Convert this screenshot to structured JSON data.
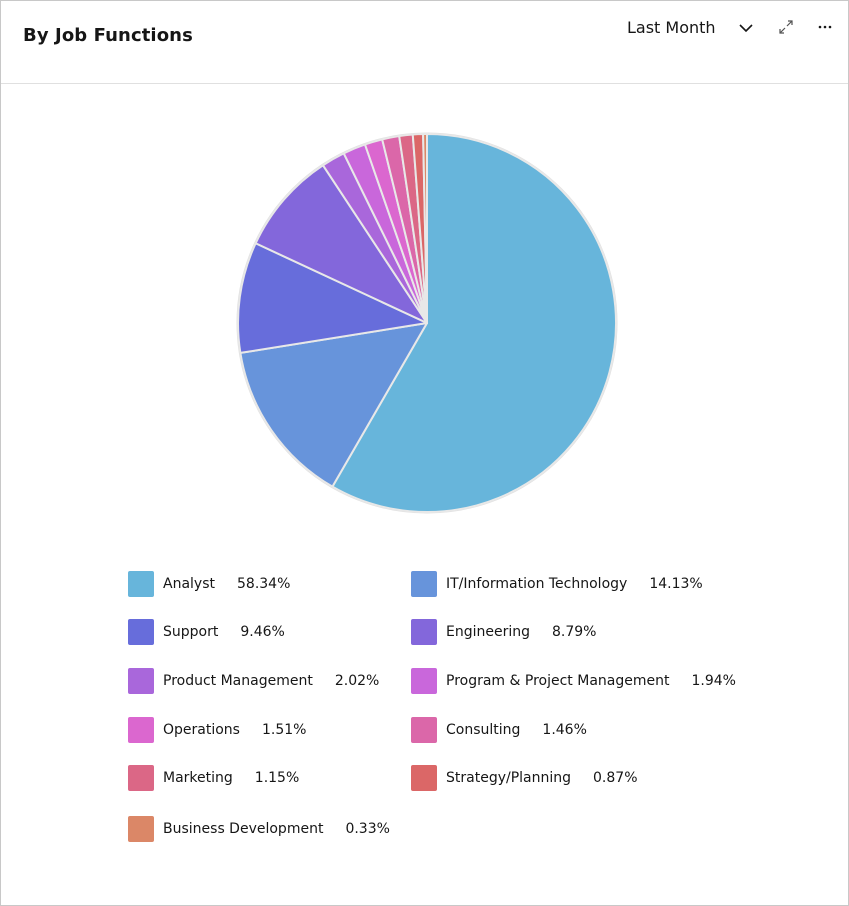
{
  "header": {
    "title": "By Job Functions",
    "period_label": "Last Month",
    "chevron_icon": "chevron-down-icon",
    "expand_icon": "maximize-icon",
    "more_icon": "overflow-menu-icon"
  },
  "chart_data": {
    "type": "pie",
    "title": "By Job Functions",
    "legend_position": "bottom",
    "slices": [
      {
        "label": "Analyst",
        "value": 58.34,
        "display": "58.34%",
        "color": "#67b5db"
      },
      {
        "label": "IT/Information Technology",
        "value": 14.13,
        "display": "14.13%",
        "color": "#6794db"
      },
      {
        "label": "Support",
        "value": 9.46,
        "display": "9.46%",
        "color": "#676ddb"
      },
      {
        "label": "Engineering",
        "value": 8.79,
        "display": "8.79%",
        "color": "#8367db"
      },
      {
        "label": "Product Management",
        "value": 2.02,
        "display": "2.02%",
        "color": "#a967db"
      },
      {
        "label": "Program & Project Management",
        "value": 1.94,
        "display": "1.94%",
        "color": "#c967db"
      },
      {
        "label": "Operations",
        "value": 1.51,
        "display": "1.51%",
        "color": "#db67cf"
      },
      {
        "label": "Consulting",
        "value": 1.46,
        "display": "1.46%",
        "color": "#db67a9"
      },
      {
        "label": "Marketing",
        "value": 1.15,
        "display": "1.15%",
        "color": "#db6786"
      },
      {
        "label": "Strategy/Planning",
        "value": 0.87,
        "display": "0.87%",
        "color": "#db6767"
      },
      {
        "label": "Business Development",
        "value": 0.33,
        "display": "0.33%",
        "color": "#db8767"
      }
    ]
  }
}
